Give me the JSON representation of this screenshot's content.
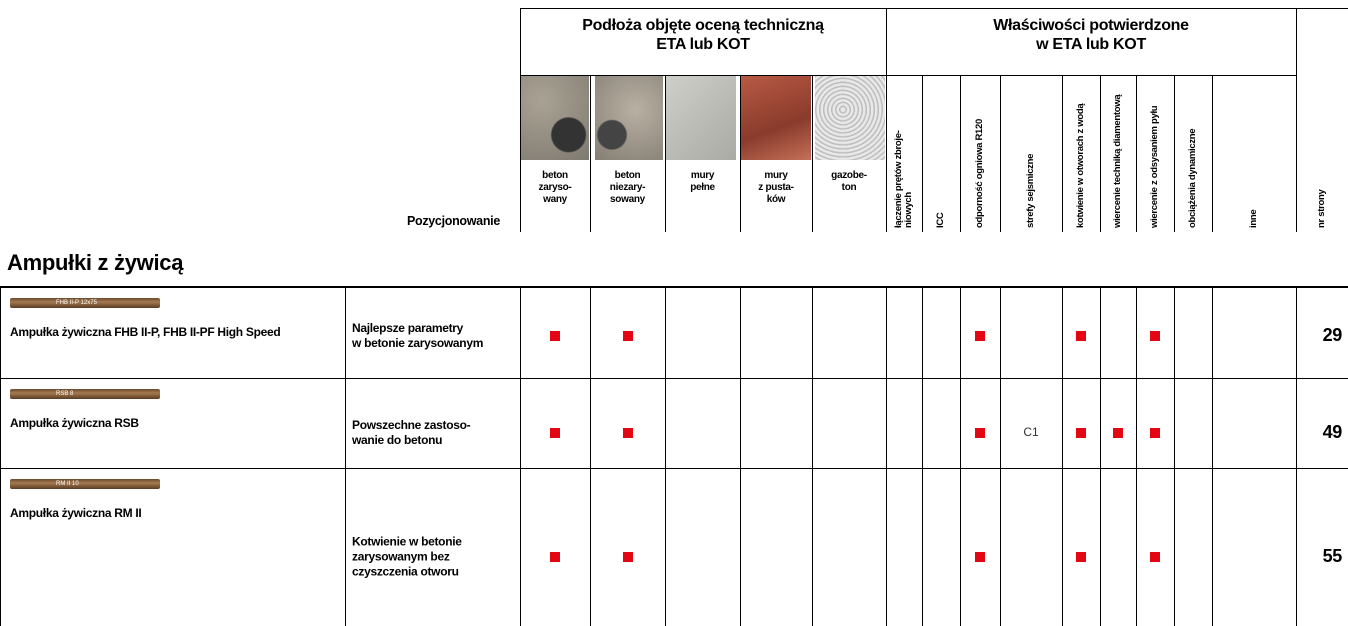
{
  "header": {
    "positioning": "Pozycjonowanie",
    "substrates_title": "Podłoża objęte oceną techniczną\nETA lub KOT",
    "properties_title": "Właściwości potwierdzone\nw ETA lub KOT",
    "substrates": [
      "beton\nzaryso-\nwany",
      "beton\nniezary-\nsowany",
      "mury\npełne",
      "mury\nz pusta-\nków",
      "gazobe-\nton"
    ],
    "properties": [
      "łączenie prętów zbroje-\nniowych",
      "ICC",
      "odporność ogniowa R120",
      "strefy sejsmiczne",
      "kotwienie w otworach z wodą",
      "wiercenie techniką diamentową",
      "wiercenie z odsysaniem pyłu",
      "obciążenia dynamiczne",
      "inne"
    ],
    "page": "nr strony"
  },
  "section": {
    "title": "Ampułki z żywicą"
  },
  "table": {
    "rows": [
      {
        "ampoule_label": "FHB II-P 12x75",
        "name": "Ampułka żywiczna FHB II-P, FHB II-PF High Speed",
        "description": "Najlepsze parametry\nw betonie zarysowanym",
        "cells": [
          true,
          true,
          false,
          false,
          false,
          false,
          false,
          true,
          false,
          true,
          false,
          true,
          false,
          false
        ],
        "page": 29
      },
      {
        "ampoule_label": "RSB 8",
        "name": "Ampułka żywiczna RSB",
        "description": "Powszechne zastoso-\nwanie do betonu",
        "cells": [
          true,
          true,
          false,
          false,
          false,
          false,
          false,
          true,
          "C1",
          true,
          true,
          true,
          false,
          false
        ],
        "page": 49
      },
      {
        "ampoule_label": "RM II 10",
        "name": "Ampułka żywiczna RM II",
        "description": "Kotwienie w betonie\nzarysowanym bez\nczyszczenia otworu",
        "cells": [
          true,
          true,
          false,
          false,
          false,
          false,
          false,
          true,
          false,
          true,
          false,
          true,
          false,
          false
        ],
        "page": 55
      }
    ]
  }
}
